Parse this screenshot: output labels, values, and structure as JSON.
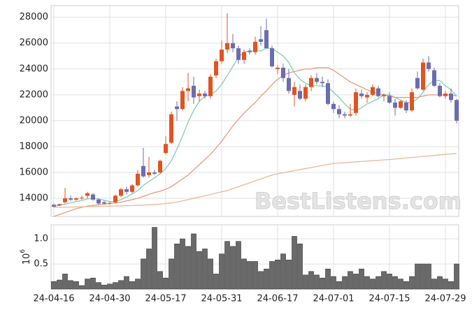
{
  "chart_data": [
    {
      "type": "candlestick",
      "watermark": "BestListens.com",
      "up_color": "#e2531f",
      "down_color": "#6c6cb0",
      "open": [
        13500,
        13450,
        13700,
        14000,
        13900,
        14000,
        14200,
        14300,
        13900,
        13700,
        13600,
        13700,
        14200,
        14700,
        14500,
        15000,
        16500,
        15800,
        16000,
        16000,
        17500,
        18300,
        21100,
        20900,
        22300,
        22700,
        21900,
        22100,
        21900,
        23500,
        24600,
        25500,
        26000,
        25600,
        24700,
        25400,
        25300,
        26300,
        27000,
        25600,
        24000,
        24100,
        23300,
        22000,
        22300,
        21700,
        22600,
        23300,
        23000,
        22900,
        21300,
        20900,
        20500,
        20400,
        20600,
        22100,
        21800,
        22000,
        22500,
        21900,
        21900,
        21400,
        21000,
        21400,
        20800,
        23300,
        22400,
        24500,
        23900,
        22700,
        21900,
        22100,
        21600
      ],
      "high": [
        13600,
        13600,
        14800,
        14200,
        14100,
        14200,
        14500,
        14400,
        14000,
        13800,
        13700,
        14300,
        14800,
        14900,
        15100,
        16200,
        17900,
        17200,
        16200,
        17000,
        18800,
        20700,
        21500,
        22600,
        23700,
        23400,
        22400,
        22300,
        23600,
        24800,
        26200,
        28300,
        26700,
        25800,
        25500,
        25600,
        26500,
        27300,
        27900,
        25800,
        24300,
        24400,
        24000,
        23000,
        22800,
        22800,
        23500,
        23700,
        23400,
        23200,
        21500,
        21200,
        20700,
        21300,
        22500,
        22400,
        22200,
        22800,
        22700,
        22100,
        22200,
        21700,
        21600,
        21600,
        22500,
        23800,
        24800,
        25000,
        24100,
        22900,
        22300,
        22500,
        21700
      ],
      "low": [
        13300,
        13400,
        13600,
        13800,
        13800,
        13900,
        14000,
        13800,
        13500,
        13500,
        13500,
        13600,
        14100,
        14300,
        14400,
        14900,
        15600,
        15600,
        15800,
        15900,
        17400,
        18200,
        20000,
        20800,
        21500,
        21300,
        21500,
        21700,
        21700,
        23300,
        24400,
        25200,
        25300,
        24400,
        24400,
        25100,
        25100,
        25800,
        25600,
        24100,
        23600,
        23000,
        22100,
        21100,
        21600,
        21500,
        22300,
        22800,
        22600,
        21200,
        20600,
        20200,
        20200,
        20300,
        20400,
        21700,
        21400,
        21900,
        21800,
        21500,
        21300,
        20400,
        20900,
        20600,
        20700,
        22400,
        22300,
        23800,
        22600,
        21800,
        21700,
        21400,
        19800
      ],
      "close": [
        13350,
        13550,
        14000,
        13900,
        14000,
        14050,
        14400,
        13900,
        13600,
        13600,
        13650,
        14200,
        14700,
        14500,
        15000,
        15900,
        15700,
        16000,
        15900,
        16900,
        18200,
        20500,
        20900,
        22300,
        22500,
        21800,
        22100,
        21900,
        23400,
        24600,
        25500,
        26000,
        25600,
        24700,
        25300,
        25300,
        26100,
        26100,
        25600,
        24200,
        24100,
        23300,
        22300,
        22600,
        21700,
        22600,
        23300,
        23000,
        22900,
        21300,
        20900,
        20500,
        20400,
        20500,
        22200,
        21900,
        22000,
        22600,
        21900,
        22000,
        21400,
        21000,
        21500,
        20800,
        22200,
        22500,
        24500,
        24000,
        22700,
        21900,
        22100,
        21600,
        20000
      ],
      "series": [
        {
          "color": "#7fcfb0",
          "values": [
            13400,
            13450,
            13550,
            13650,
            13750,
            13850,
            13950,
            14000,
            13950,
            13850,
            13750,
            13750,
            13900,
            14100,
            14350,
            14600,
            15000,
            15300,
            15600,
            15900,
            16300,
            16900,
            17800,
            18800,
            19900,
            20800,
            21500,
            21900,
            22000,
            22300,
            22800,
            23500,
            24200,
            24900,
            25300,
            25400,
            25400,
            25400,
            25600,
            25600,
            25300,
            25000,
            24500,
            23700,
            23200,
            22900,
            22700,
            22700,
            22700,
            22600,
            22200,
            21800,
            21300,
            20900,
            20800,
            21000,
            21300,
            21500,
            21700,
            22000,
            22000,
            21800,
            21600,
            21400,
            21400,
            21700,
            22200,
            22800,
            23100,
            23100,
            22700,
            22400,
            21900
          ]
        },
        {
          "color": "#e89a7c",
          "values": [
            12600,
            12750,
            12900,
            13050,
            13200,
            13300,
            13400,
            13450,
            13500,
            13550,
            13600,
            13650,
            13700,
            13800,
            13900,
            14000,
            14150,
            14300,
            14450,
            14550,
            14700,
            14900,
            15200,
            15500,
            15800,
            16200,
            16600,
            17000,
            17400,
            17900,
            18400,
            19000,
            19600,
            20100,
            20600,
            21000,
            21400,
            21900,
            22300,
            22800,
            23200,
            23500,
            23700,
            23800,
            23900,
            24000,
            24000,
            24100,
            24100,
            24100,
            23900,
            23600,
            23300,
            23000,
            22800,
            22600,
            22400,
            22200,
            22100,
            22000,
            21900,
            21800,
            21800,
            21800,
            21800,
            21800,
            21900,
            22000,
            22000,
            22000,
            22000,
            22000,
            21900
          ]
        },
        {
          "color": "#ecb898",
          "values": [
            13300,
            13300,
            13300,
            13320,
            13340,
            13350,
            13360,
            13370,
            13380,
            13390,
            13400,
            13410,
            13420,
            13430,
            13440,
            13460,
            13480,
            13500,
            13520,
            13550,
            13600,
            13650,
            13700,
            13800,
            13900,
            14000,
            14100,
            14200,
            14300,
            14400,
            14500,
            14600,
            14750,
            14900,
            15050,
            15200,
            15350,
            15500,
            15650,
            15800,
            15900,
            15980,
            16060,
            16140,
            16220,
            16300,
            16380,
            16460,
            16540,
            16620,
            16700,
            16730,
            16760,
            16790,
            16820,
            16850,
            16880,
            16910,
            16940,
            16970,
            17000,
            17040,
            17080,
            17120,
            17160,
            17200,
            17240,
            17280,
            17320,
            17360,
            17400,
            17430,
            17460
          ]
        }
      ],
      "ylim": [
        12600,
        28900
      ],
      "yticks": [
        14000,
        16000,
        18000,
        20000,
        22000,
        24000,
        26000,
        28000
      ],
      "grid": true
    },
    {
      "type": "bar",
      "y_label": {
        "base": "10",
        "exponent": "6"
      },
      "color": "#6a6a6a",
      "categories": [
        "24-04-16",
        null,
        null,
        null,
        null,
        null,
        null,
        null,
        null,
        null,
        "24-04-30",
        null,
        null,
        null,
        null,
        null,
        null,
        null,
        null,
        null,
        "24-05-17",
        null,
        null,
        null,
        null,
        null,
        null,
        null,
        null,
        null,
        "24-05-31",
        null,
        null,
        null,
        null,
        null,
        null,
        null,
        null,
        null,
        "24-06-17",
        null,
        null,
        null,
        null,
        null,
        null,
        null,
        null,
        null,
        "24-07-01",
        null,
        null,
        null,
        null,
        null,
        null,
        null,
        null,
        null,
        "24-07-15",
        null,
        null,
        null,
        null,
        null,
        null,
        null,
        null,
        null,
        "24-07-29",
        null,
        null
      ],
      "values": [
        0.15,
        0.18,
        0.3,
        0.17,
        0.15,
        0.07,
        0.2,
        0.22,
        0.13,
        0.08,
        0.1,
        0.13,
        0.17,
        0.25,
        0.15,
        0.2,
        0.6,
        0.8,
        1.23,
        0.35,
        0.22,
        0.6,
        0.9,
        1.0,
        0.85,
        1.1,
        0.75,
        0.8,
        0.6,
        0.3,
        0.7,
        0.95,
        0.85,
        0.95,
        0.6,
        0.55,
        0.55,
        0.35,
        0.4,
        0.55,
        0.58,
        0.7,
        0.58,
        1.05,
        0.9,
        0.28,
        0.35,
        0.28,
        0.22,
        0.4,
        0.25,
        0.15,
        0.25,
        0.35,
        0.3,
        0.4,
        0.25,
        0.2,
        0.25,
        0.35,
        0.3,
        0.25,
        0.2,
        0.15,
        0.25,
        0.5,
        0.5,
        0.5,
        0.2,
        0.25,
        0.2,
        0.15,
        0.5
      ],
      "ylim": [
        0,
        1.28
      ],
      "yticks": [
        0.5,
        {
          "value": 1,
          "label": "1.0"
        }
      ],
      "grid": true
    }
  ]
}
